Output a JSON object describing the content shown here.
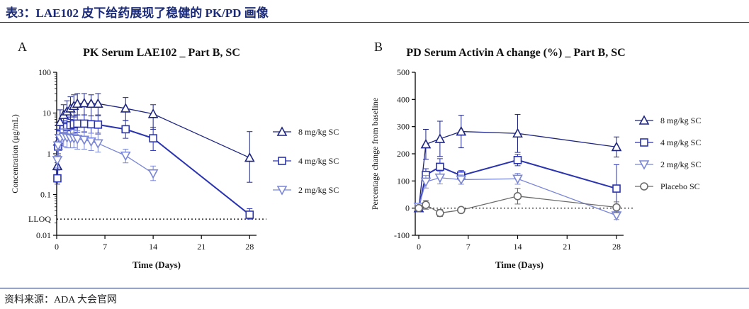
{
  "header": {
    "title": "表3：LAE102 皮下给药展现了稳健的 PK/PD 画像"
  },
  "footer": {
    "source": "资料来源：ADA 大会官网"
  },
  "colors": {
    "dark": "#1e2580",
    "mid": "#2a33b0",
    "light": "#7a86d6",
    "placebo": "#6b6b6b",
    "brand": "#1a2a78"
  },
  "chart_data": [
    {
      "panel": "A",
      "type": "line",
      "title": "PK Serum LAE102 _ Part B, SC",
      "xlabel": "Time (Days)",
      "ylabel": "Concentration (μg/mL)",
      "yscale": "log",
      "xlim": [
        0,
        29
      ],
      "ylim": [
        0.01,
        100
      ],
      "xticks": [
        0,
        7,
        14,
        21,
        28
      ],
      "yticks": [
        0.01,
        0.1,
        1,
        10,
        100
      ],
      "ytick_labels": [
        "0.01",
        "0.1",
        "1",
        "10",
        "100"
      ],
      "reference_line": {
        "value": 0.025,
        "label": "LLOQ",
        "style": "dotted"
      },
      "series": [
        {
          "name": "8 mg/kg SC",
          "marker": "triangle-up",
          "color": "#1e2580",
          "x": [
            0.1,
            0.2,
            0.5,
            1,
            1.5,
            2,
            2.5,
            3,
            4,
            5,
            6,
            10,
            14,
            28
          ],
          "y": [
            0.5,
            2,
            6,
            9,
            11,
            13,
            15,
            17,
            17.5,
            17,
            17,
            13,
            9.5,
            0.8
          ],
          "err_hi": [
            1.5,
            4,
            12,
            16,
            20,
            25,
            28,
            30,
            30,
            28,
            30,
            24,
            16,
            3.5
          ],
          "err_lo": [
            0.25,
            1,
            3.5,
            5,
            6,
            7,
            8,
            9,
            9,
            8.5,
            9,
            6.5,
            4,
            0.2
          ]
        },
        {
          "name": "4 mg/kg SC",
          "marker": "square",
          "color": "#2a33b0",
          "x": [
            0.1,
            0.2,
            0.5,
            1,
            1.5,
            2,
            2.5,
            3,
            4,
            5,
            6,
            10,
            14,
            28
          ],
          "y": [
            0.25,
            1.5,
            3,
            4,
            4.5,
            5,
            5.3,
            5.5,
            5.5,
            5.3,
            5.2,
            4,
            2.4,
            0.032
          ],
          "err_hi": [
            0.4,
            2.5,
            5,
            6.5,
            7.5,
            8,
            8.5,
            9,
            9,
            8.5,
            8.5,
            6.5,
            4.5,
            0.045
          ],
          "err_lo": [
            0.18,
            0.8,
            1.8,
            2.5,
            2.8,
            3,
            3.2,
            3.4,
            3.4,
            3.2,
            3.2,
            2.4,
            1.2,
            0.025
          ]
        },
        {
          "name": "2 mg/kg SC",
          "marker": "triangle-down",
          "color": "#7a86d6",
          "x": [
            0.1,
            0.2,
            0.5,
            1,
            1.5,
            2,
            2.5,
            3,
            4,
            5,
            6,
            10,
            14
          ],
          "y": [
            0.7,
            1.6,
            2.4,
            2.6,
            2.5,
            2.4,
            2.4,
            2.3,
            2.2,
            2.0,
            1.8,
            0.9,
            0.33
          ],
          "err_hi": [
            1.2,
            2.8,
            4,
            4.2,
            4.0,
            3.9,
            3.9,
            3.7,
            3.5,
            3.2,
            3.0,
            1.3,
            0.5
          ],
          "err_lo": [
            0.45,
            0.9,
            1.3,
            1.5,
            1.4,
            1.4,
            1.4,
            1.3,
            1.3,
            1.2,
            1.1,
            0.6,
            0.22
          ]
        }
      ]
    },
    {
      "panel": "B",
      "type": "line",
      "title": "PD Serum Activin A change (%) _ Part B, SC",
      "xlabel": "Time (Days)",
      "ylabel": "Percentage change from baseline",
      "xlim": [
        -0.5,
        29
      ],
      "ylim": [
        -100,
        500
      ],
      "xticks": [
        0,
        7,
        14,
        21,
        28
      ],
      "yticks": [
        -100,
        0,
        100,
        200,
        300,
        400,
        500
      ],
      "reference_line": {
        "value": 0,
        "style": "dotted"
      },
      "series": [
        {
          "name": "8 mg/kg SC",
          "marker": "triangle-up",
          "color": "#1e2580",
          "x": [
            0,
            1,
            3,
            6,
            14,
            28
          ],
          "y": [
            0,
            235,
            255,
            282,
            275,
            225
          ],
          "err_hi": [
            10,
            290,
            320,
            342,
            345,
            262
          ],
          "err_lo": [
            -10,
            180,
            190,
            222,
            205,
            188
          ]
        },
        {
          "name": "4 mg/kg SC",
          "marker": "square",
          "color": "#2a33b0",
          "x": [
            0,
            1,
            3,
            6,
            14,
            28
          ],
          "y": [
            0,
            122,
            152,
            120,
            177,
            72
          ],
          "err_hi": [
            10,
            145,
            182,
            138,
            198,
            160
          ],
          "err_lo": [
            -10,
            100,
            122,
            102,
            156,
            -16
          ]
        },
        {
          "name": "2 mg/kg SC",
          "marker": "triangle-down",
          "color": "#7a86d6",
          "x": [
            0,
            1,
            3,
            6,
            14,
            28
          ],
          "y": [
            5,
            97,
            112,
            105,
            108,
            -27
          ],
          "err_hi": [
            15,
            120,
            135,
            122,
            128,
            -12
          ],
          "err_lo": [
            -5,
            74,
            89,
            88,
            88,
            -42
          ]
        },
        {
          "name": "Placebo SC",
          "marker": "circle",
          "color": "#6b6b6b",
          "x": [
            0,
            1,
            3,
            6,
            14,
            28
          ],
          "y": [
            0,
            12,
            -18,
            -7,
            44,
            3
          ],
          "err_hi": [
            8,
            28,
            -5,
            0,
            73,
            23
          ],
          "err_lo": [
            -8,
            -4,
            -31,
            -14,
            15,
            -17
          ]
        }
      ]
    }
  ]
}
